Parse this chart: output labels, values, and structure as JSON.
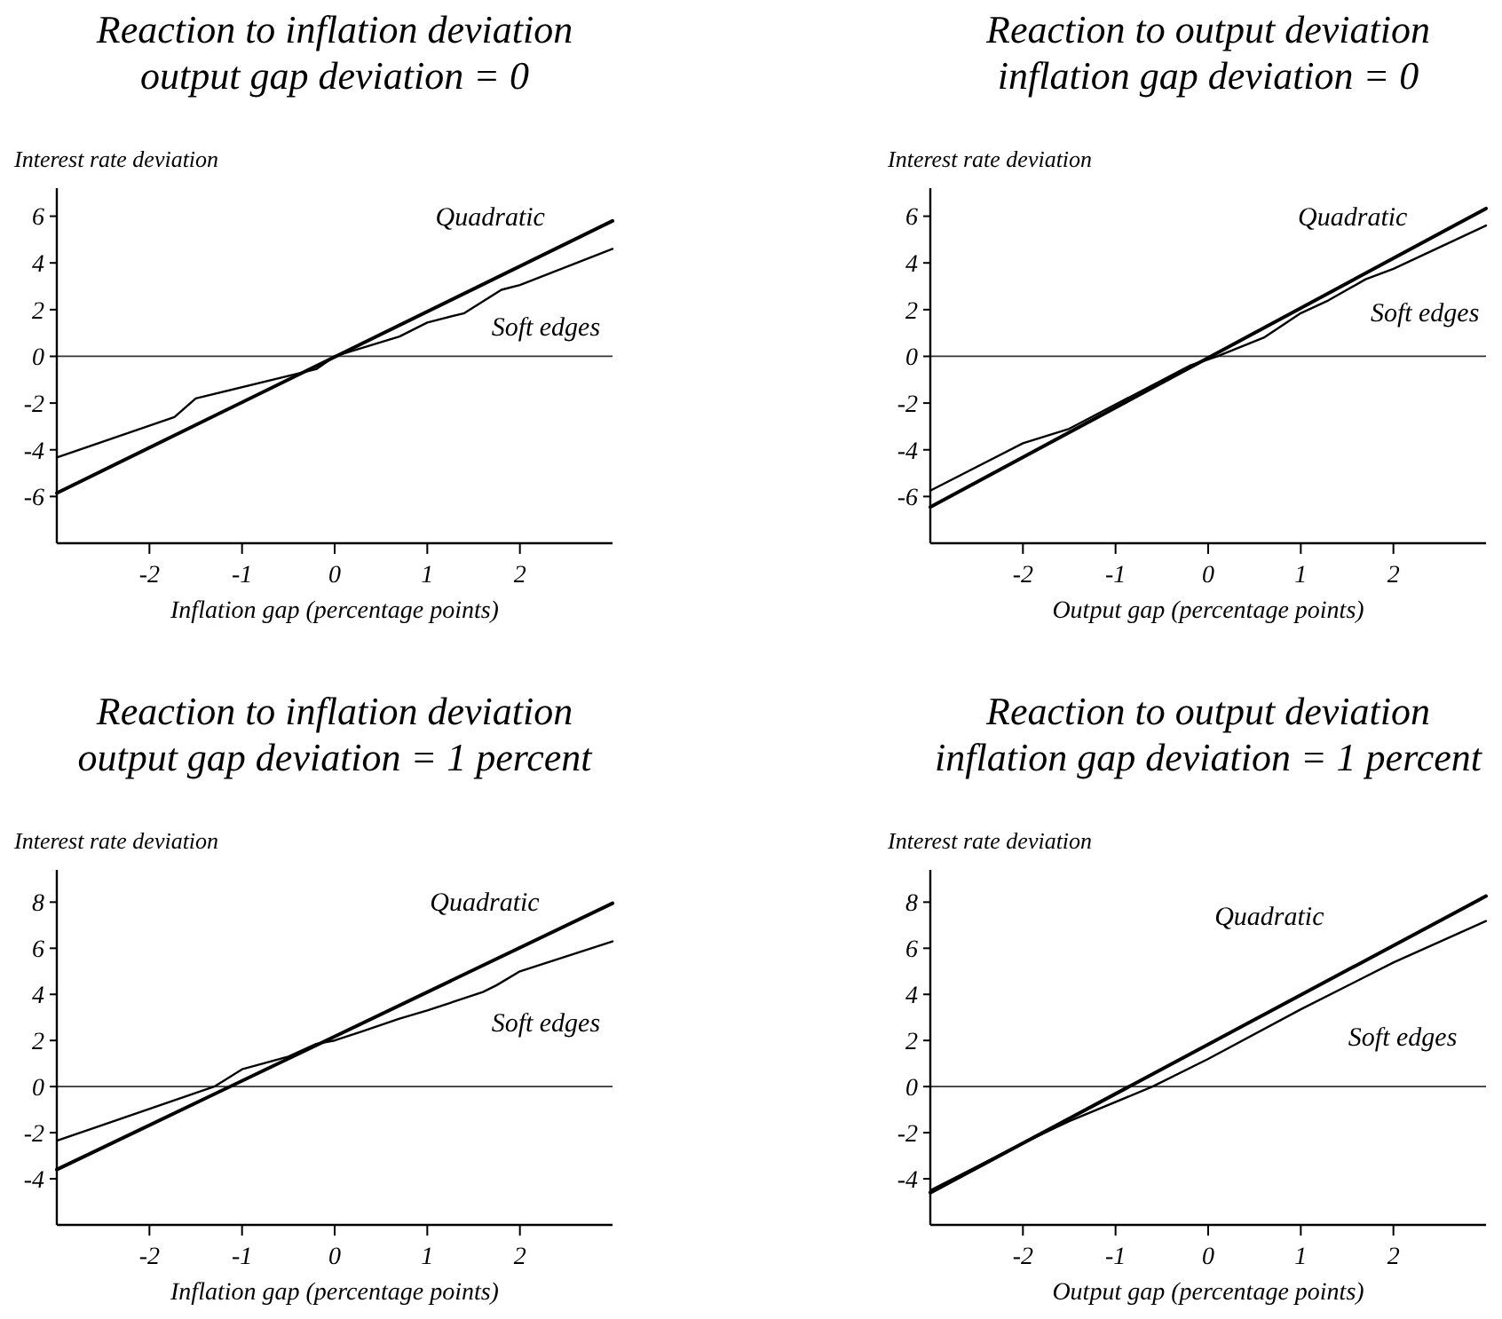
{
  "chart_data": [
    {
      "type": "line",
      "title": "Reaction to inflation deviation",
      "subtitle": "output gap deviation = 0",
      "xlabel": "Inflation gap (percentage points)",
      "ylabel": "Interest rate deviation",
      "xlim": [
        -3,
        3
      ],
      "ylim": [
        -8,
        7.2
      ],
      "xticks": [
        -2,
        -1,
        0,
        1,
        2
      ],
      "yticks": [
        -6,
        -4,
        -2,
        0,
        2,
        4,
        6
      ],
      "grid": false,
      "legend": false,
      "ref_lines": [
        {
          "axis": "y",
          "value": 0
        }
      ],
      "series": [
        {
          "name": "Quadratic",
          "color": "#000000",
          "x": [
            -3,
            3
          ],
          "values": [
            -5.85,
            5.8
          ]
        },
        {
          "name": "Soft edges",
          "color": "#000000",
          "x": [
            -3,
            -1.73,
            -1.5,
            -0.2,
            0,
            0.7,
            1,
            1.4,
            1.8,
            2,
            3
          ],
          "values": [
            -4.33,
            -2.6,
            -1.8,
            -0.55,
            0,
            0.85,
            1.45,
            1.85,
            2.85,
            3.05,
            4.6
          ]
        }
      ]
    },
    {
      "type": "line",
      "title": "Reaction to output deviation",
      "subtitle": "inflation gap deviation = 0",
      "xlabel": "Output gap (percentage points)",
      "ylabel": "Interest rate deviation",
      "xlim": [
        -3,
        3
      ],
      "ylim": [
        -8,
        7.2
      ],
      "xticks": [
        -2,
        -1,
        0,
        1,
        2
      ],
      "yticks": [
        -6,
        -4,
        -2,
        0,
        2,
        4,
        6
      ],
      "grid": false,
      "legend": false,
      "ref_lines": [
        {
          "axis": "y",
          "value": 0
        }
      ],
      "series": [
        {
          "name": "Quadratic",
          "color": "#000000",
          "x": [
            -3,
            3
          ],
          "values": [
            -6.45,
            6.33
          ]
        },
        {
          "name": "Soft edges",
          "color": "#000000",
          "x": [
            -3,
            -2,
            -1.5,
            -0.2,
            0.1,
            0.6,
            1,
            1.3,
            1.7,
            2,
            3
          ],
          "values": [
            -5.75,
            -3.72,
            -3.1,
            -0.4,
            0,
            0.8,
            1.85,
            2.4,
            3.3,
            3.75,
            5.6
          ]
        }
      ]
    },
    {
      "type": "line",
      "title": "Reaction to inflation deviation",
      "subtitle": "output gap deviation = 1 percent",
      "xlabel": "Inflation gap (percentage points)",
      "ylabel": "Interest rate deviation",
      "xlim": [
        -3,
        3
      ],
      "ylim": [
        -6,
        9.4
      ],
      "xticks": [
        -2,
        -1,
        0,
        1,
        2
      ],
      "yticks": [
        -4,
        -2,
        0,
        2,
        4,
        6,
        8
      ],
      "grid": false,
      "legend": false,
      "ref_lines": [
        {
          "axis": "y",
          "value": 0
        }
      ],
      "series": [
        {
          "name": "Quadratic",
          "color": "#000000",
          "x": [
            -3,
            3
          ],
          "values": [
            -3.6,
            7.95
          ]
        },
        {
          "name": "Soft edges",
          "color": "#000000",
          "x": [
            -3,
            -1.3,
            -1,
            -0.5,
            -0.2,
            0,
            0.3,
            0.7,
            1,
            1.6,
            1.75,
            2,
            3
          ],
          "values": [
            -2.35,
            0,
            0.75,
            1.3,
            1.85,
            2.0,
            2.4,
            2.95,
            3.3,
            4.1,
            4.4,
            5.0,
            6.3
          ]
        }
      ]
    },
    {
      "type": "line",
      "title": "Reaction to output deviation",
      "subtitle": "inflation gap deviation = 1 percent",
      "xlabel": "Output gap (percentage points)",
      "ylabel": "Interest rate deviation",
      "xlim": [
        -3,
        3
      ],
      "ylim": [
        -6,
        9.4
      ],
      "xticks": [
        -2,
        -1,
        0,
        1,
        2
      ],
      "yticks": [
        -4,
        -2,
        0,
        2,
        4,
        6,
        8
      ],
      "grid": false,
      "legend": false,
      "ref_lines": [
        {
          "axis": "y",
          "value": 0
        }
      ],
      "series": [
        {
          "name": "Quadratic",
          "color": "#000000",
          "x": [
            -3,
            3
          ],
          "values": [
            -4.6,
            8.26
          ]
        },
        {
          "name": "Soft edges",
          "color": "#000000",
          "x": [
            -3,
            -2,
            -1.5,
            -0.6,
            0,
            1,
            2,
            3
          ],
          "values": [
            -4.5,
            -2.45,
            -1.5,
            0,
            1.2,
            3.35,
            5.38,
            7.18
          ]
        }
      ]
    }
  ]
}
